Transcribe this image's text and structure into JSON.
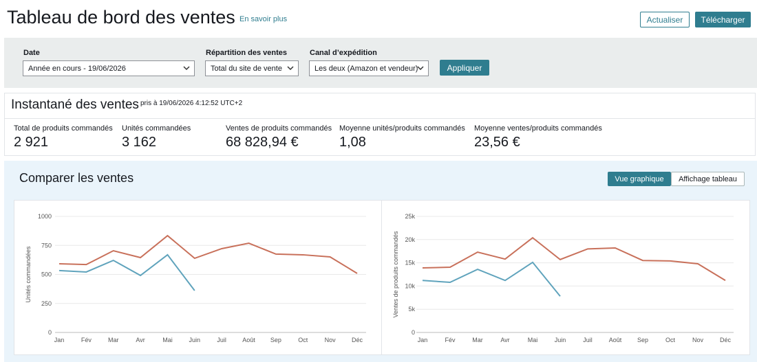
{
  "header": {
    "title": "Tableau de bord des ventes",
    "link": "En savoir plus",
    "buttons": [
      "Actualiser",
      "Télécharger"
    ]
  },
  "filters": [
    {
      "label": "Date",
      "value": "Année en cours - 19/06/2026"
    },
    {
      "label": "Répartition des ventes",
      "value": "Total du site de vente"
    },
    {
      "label": "Canal d’expédition",
      "value": "Les deux (Amazon et vendeur)"
    }
  ],
  "apply": "Appliquer",
  "snapshot": {
    "title": "Instantané des ventes",
    "timestamp": "pris à 19/06/2026 4:12:52 UTC+2",
    "metrics": [
      {
        "label": "Total de produits commandés",
        "value": "2 921"
      },
      {
        "label": "Unités commandées",
        "value": "3 162"
      },
      {
        "label": "Ventes de produits commandés",
        "value": "68 828,94 €"
      },
      {
        "label": "Moyenne unités/produits commandés",
        "value": "1,08"
      },
      {
        "label": "Moyenne ventes/produits commandés",
        "value": "23,56 €"
      }
    ]
  },
  "compare": {
    "title": "Comparer les ventes",
    "views": [
      "Vue graphique",
      "Affichage tableau"
    ]
  },
  "chart_data": [
    {
      "type": "line",
      "y_label": "Unités commandées",
      "categories": [
        "Jan",
        "Fév",
        "Mar",
        "Avr",
        "Mai",
        "Juin",
        "Juil",
        "Août",
        "Sep",
        "Oct",
        "Nov",
        "Déc"
      ],
      "ylim": [
        0,
        1000
      ],
      "yticks": [
        0,
        250,
        500,
        750,
        1000
      ],
      "grid": true,
      "series": [
        {
          "color": "#c8705a",
          "values": [
            592,
            585,
            704,
            645,
            834,
            639,
            722,
            769,
            675,
            669,
            651,
            509
          ]
        },
        {
          "color": "#5fa3bc",
          "values": [
            533,
            521,
            621,
            491,
            669,
            361,
            null,
            null,
            null,
            null,
            null,
            null
          ]
        }
      ]
    },
    {
      "type": "line",
      "y_label": "Ventes de produits commandés",
      "categories": [
        "Jan",
        "Fév",
        "Mar",
        "Avr",
        "Mai",
        "Juin",
        "Juil",
        "Août",
        "Sep",
        "Oct",
        "Nov",
        "Déc"
      ],
      "ylim": [
        0,
        25000
      ],
      "yticks": [
        {
          "value": 0,
          "label": "0"
        },
        {
          "value": 5000,
          "label": "5k"
        },
        {
          "value": 10000,
          "label": "10k"
        },
        {
          "value": 15000,
          "label": "15k"
        },
        {
          "value": 20000,
          "label": "20k"
        },
        {
          "value": 25000,
          "label": "25k"
        }
      ],
      "grid": true,
      "series": [
        {
          "color": "#c8705a",
          "values": [
            13900,
            14050,
            17300,
            15800,
            20400,
            15700,
            18000,
            18200,
            15500,
            15400,
            14800,
            11200
          ]
        },
        {
          "color": "#5fa3bc",
          "values": [
            11200,
            10800,
            13600,
            11200,
            15100,
            7800,
            null,
            null,
            null,
            null,
            null,
            null
          ]
        }
      ]
    }
  ]
}
